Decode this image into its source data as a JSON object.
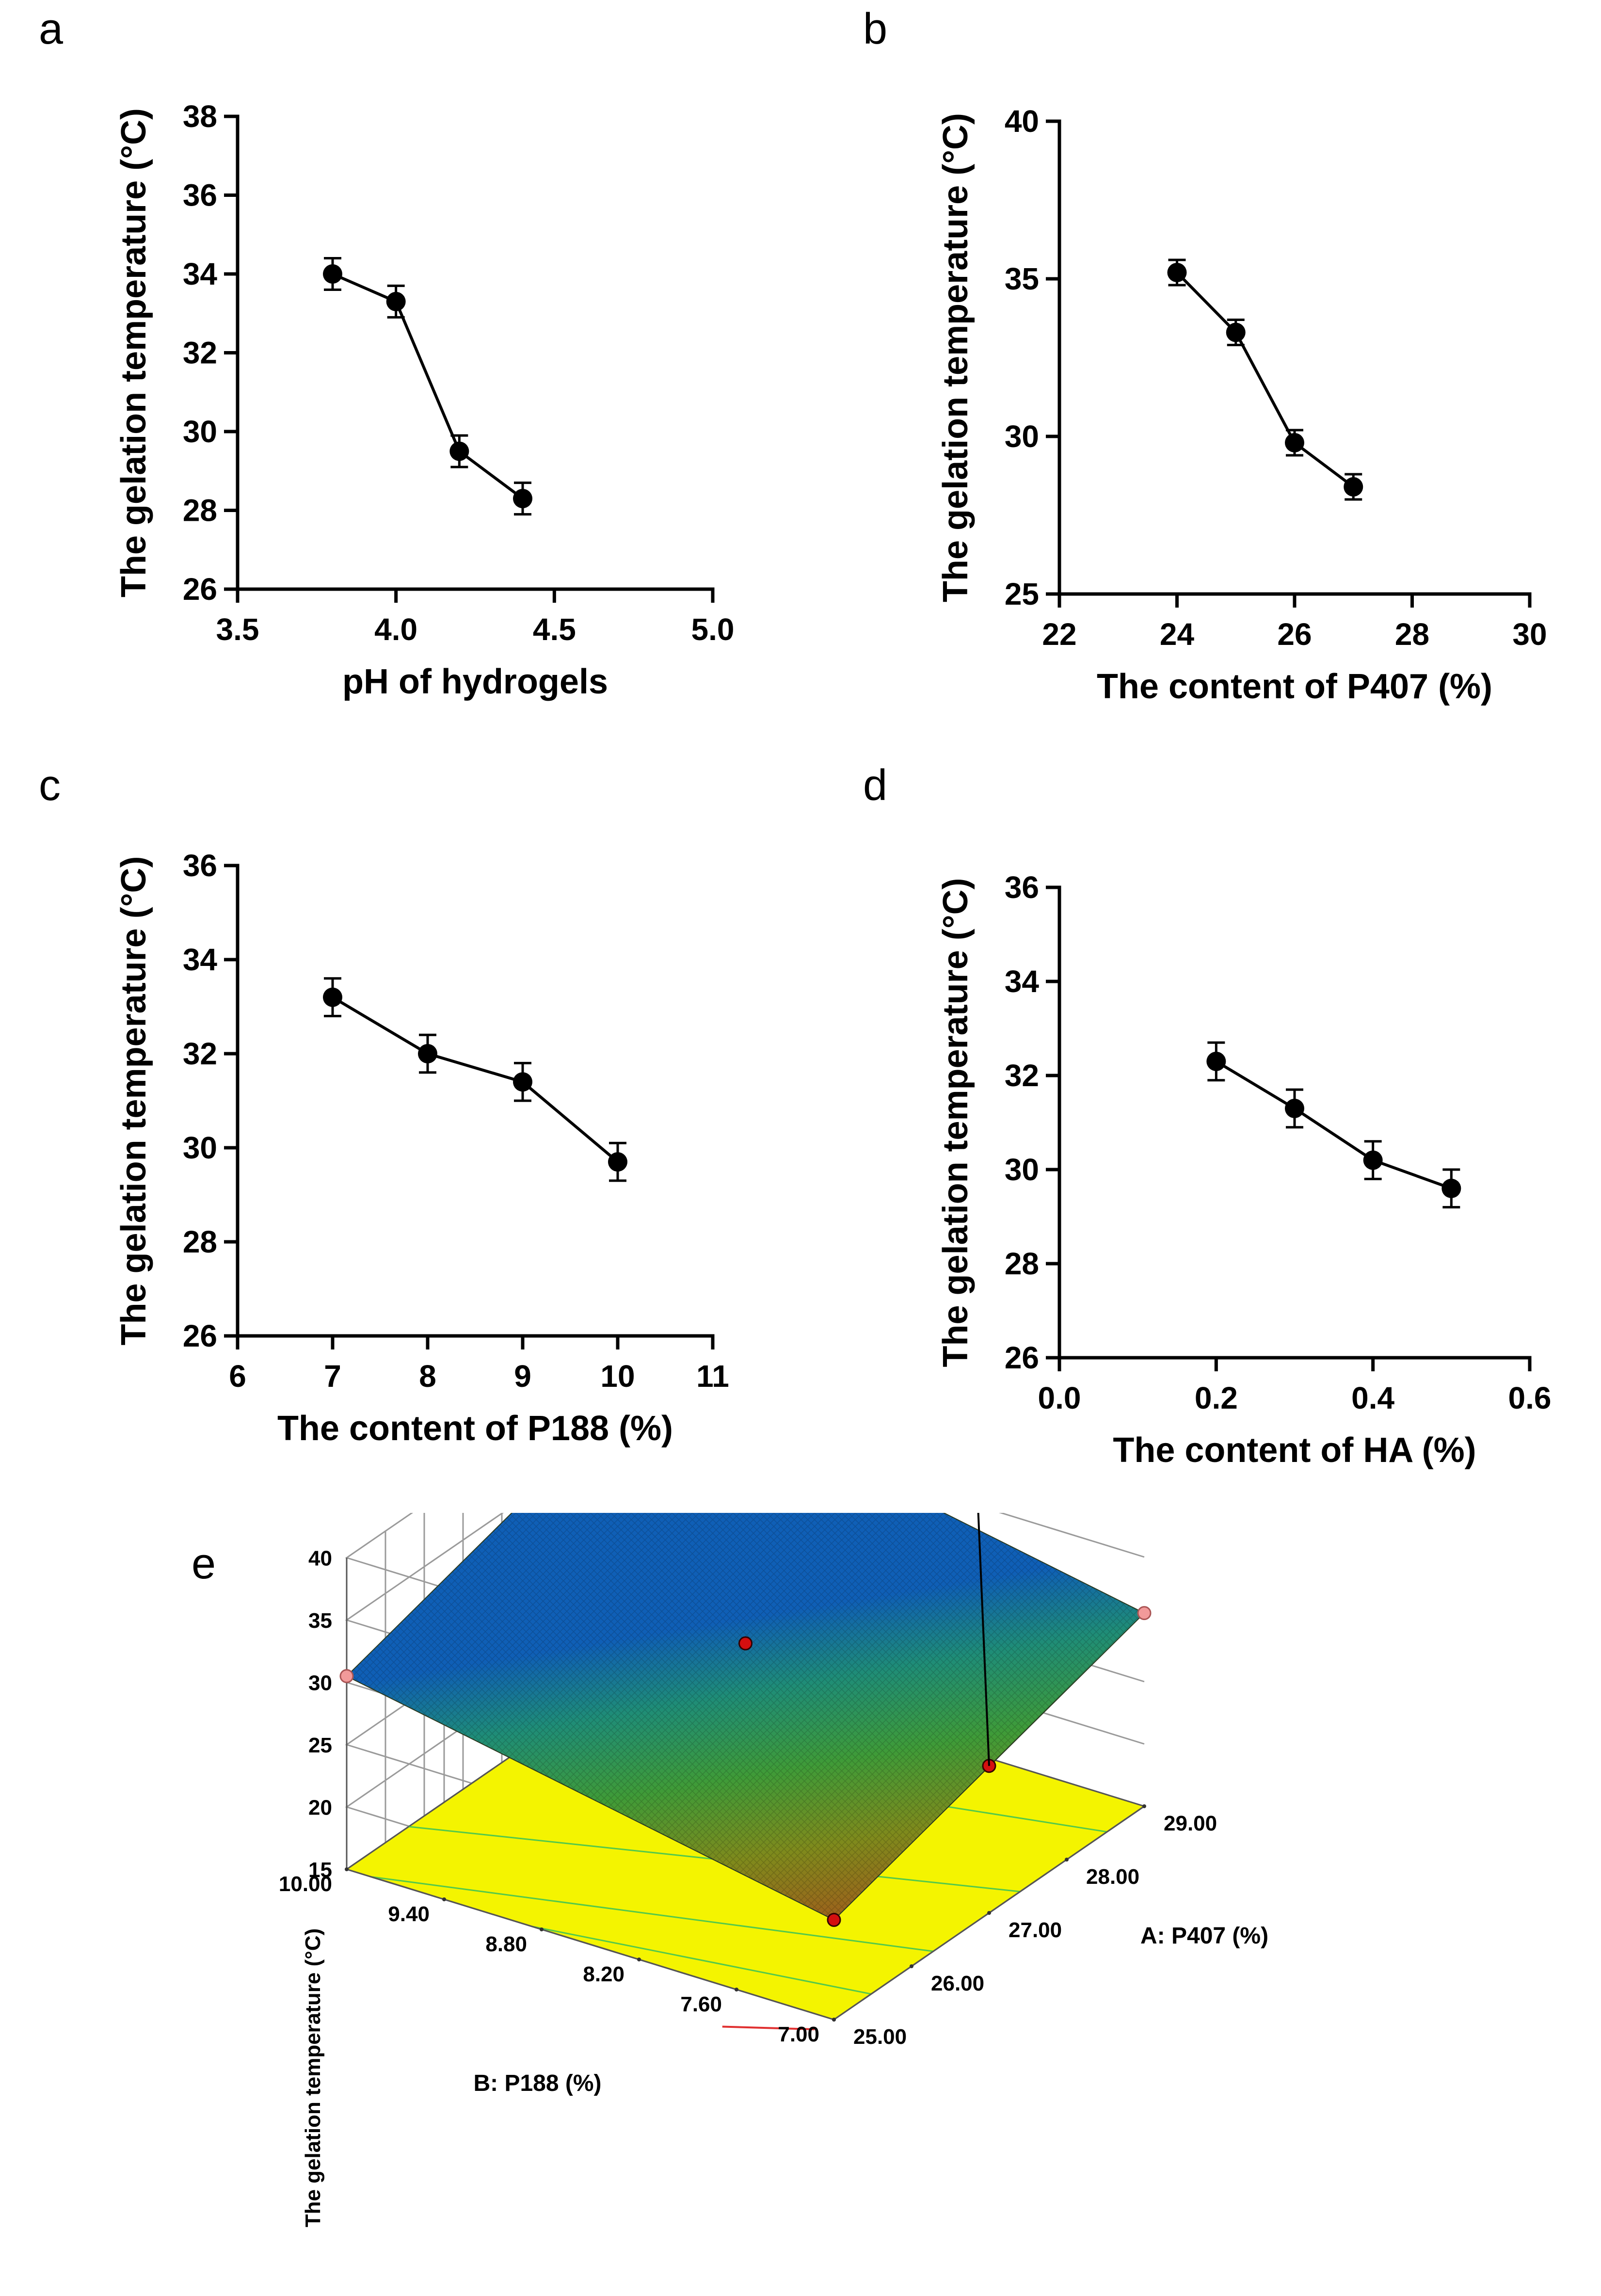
{
  "figure": {
    "panels": [
      "a",
      "b",
      "c",
      "d",
      "e"
    ]
  },
  "chart_data": [
    {
      "id": "a",
      "type": "line",
      "panel_label": "a",
      "xlabel": "pH of hydrogels",
      "ylabel": "The gelation temperature (°C)",
      "xlim": [
        3.5,
        5.0
      ],
      "ylim": [
        26,
        38
      ],
      "xticks": [
        "3.5",
        "4.0",
        "4.5",
        "5.0"
      ],
      "yticks": [
        "26",
        "28",
        "30",
        "32",
        "34",
        "36",
        "38"
      ],
      "x": [
        3.8,
        4.0,
        4.2,
        4.4
      ],
      "y": [
        34.0,
        33.3,
        29.5,
        28.3
      ],
      "error": [
        0.4,
        0.4,
        0.4,
        0.4
      ]
    },
    {
      "id": "b",
      "type": "line",
      "panel_label": "b",
      "xlabel": "The content of P407 (%)",
      "ylabel": "The gelation temperature (°C)",
      "xlim": [
        22,
        30
      ],
      "ylim": [
        25,
        40
      ],
      "xticks": [
        "22",
        "24",
        "26",
        "28",
        "30"
      ],
      "yticks": [
        "25",
        "30",
        "35",
        "40"
      ],
      "x": [
        24,
        25,
        26,
        27
      ],
      "y": [
        35.2,
        33.3,
        29.8,
        28.4
      ],
      "error": [
        0.4,
        0.4,
        0.4,
        0.4
      ]
    },
    {
      "id": "c",
      "type": "line",
      "panel_label": "c",
      "xlabel": "The content of P188 (%)",
      "ylabel": "The gelation temperature (°C)",
      "xlim": [
        6,
        11
      ],
      "ylim": [
        26,
        36
      ],
      "xticks": [
        "6",
        "7",
        "8",
        "9",
        "10",
        "11"
      ],
      "yticks": [
        "26",
        "28",
        "30",
        "32",
        "34",
        "36"
      ],
      "x": [
        7,
        8,
        9,
        10
      ],
      "y": [
        33.2,
        32.0,
        31.4,
        29.7
      ],
      "error": [
        0.4,
        0.4,
        0.4,
        0.4
      ]
    },
    {
      "id": "d",
      "type": "line",
      "panel_label": "d",
      "xlabel": "The content of HA (%)",
      "ylabel": "The gelation temperature (°C)",
      "xlim": [
        0.0,
        0.6
      ],
      "ylim": [
        26,
        36
      ],
      "xticks": [
        "0.0",
        "0.2",
        "0.4",
        "0.6"
      ],
      "yticks": [
        "26",
        "28",
        "30",
        "32",
        "34",
        "36"
      ],
      "x": [
        0.2,
        0.3,
        0.4,
        0.5
      ],
      "y": [
        32.3,
        31.3,
        30.2,
        29.6
      ],
      "error": [
        0.4,
        0.4,
        0.4,
        0.4
      ]
    },
    {
      "id": "e",
      "type": "surface",
      "panel_label": "e",
      "xlabel": "A: P407 (%)",
      "ylabel": "B: P188 (%)",
      "zlabel": "The gelation temperature (°C)",
      "xlim": [
        25.0,
        29.0
      ],
      "ylim": [
        7.0,
        10.0
      ],
      "zlim": [
        15,
        40
      ],
      "xticks": [
        "25.00",
        "26.00",
        "27.00",
        "28.00",
        "29.00"
      ],
      "yticks": [
        "7.00",
        "7.60",
        "8.20",
        "8.80",
        "9.40",
        "10.00"
      ],
      "zticks": [
        "15",
        "20",
        "25",
        "30",
        "35",
        "40"
      ],
      "flag_value": "30",
      "corner_values": {
        "A25_B7": 23.0,
        "A29_B7": 30.5,
        "A25_B10": 30.5,
        "A29_B10": 38.0
      },
      "design_points": [
        {
          "A": 25.0,
          "B": 7.0,
          "z": 23.0
        },
        {
          "A": 29.0,
          "B": 7.0,
          "z": 30.5
        },
        {
          "A": 25.0,
          "B": 10.0,
          "z": 30.5
        },
        {
          "A": 27.0,
          "B": 8.5,
          "z": 30.6
        },
        {
          "A": 27.0,
          "B": 7.0,
          "z": 26.8
        }
      ]
    }
  ]
}
